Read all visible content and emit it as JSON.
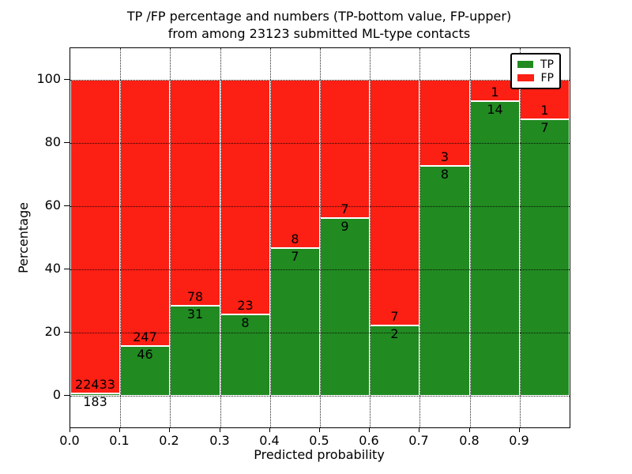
{
  "title": {
    "line1": "TP /FP percentage and numbers (TP-bottom value, FP-upper)",
    "line2": "from among 23123 submitted ML-type contacts"
  },
  "axes": {
    "xlabel": "Predicted probability",
    "ylabel": "Percentage"
  },
  "chart_data": {
    "type": "bar",
    "stacked": true,
    "title": "TP /FP percentage and numbers (TP-bottom value, FP-upper) from among 23123 submitted ML-type contacts",
    "xlabel": "Predicted probability",
    "ylabel": "Percentage",
    "total_contacts": 23123,
    "bin_edges": [
      0.0,
      0.1,
      0.2,
      0.3,
      0.4,
      0.5,
      0.6,
      0.7,
      0.8,
      0.9,
      1.0
    ],
    "series": [
      {
        "name": "TP",
        "color": "#218a21",
        "counts": [
          183,
          46,
          31,
          8,
          7,
          9,
          2,
          8,
          14,
          7
        ]
      },
      {
        "name": "FP",
        "color": "#fc1f14",
        "counts": [
          22433,
          247,
          78,
          23,
          8,
          7,
          7,
          3,
          1,
          1
        ]
      }
    ],
    "tp_percent": [
      0.81,
      15.7,
      28.44,
      25.81,
      46.67,
      56.25,
      22.22,
      72.73,
      93.33,
      87.5
    ],
    "annotation_rule": "FP count printed above TP/FP boundary, TP count printed below boundary",
    "xticks": [
      0.0,
      0.1,
      0.2,
      0.3,
      0.4,
      0.5,
      0.6,
      0.7,
      0.8,
      0.9
    ],
    "xtick_labels": [
      "0.0",
      "0.1",
      "0.2",
      "0.3",
      "0.4",
      "0.5",
      "0.6",
      "0.7",
      "0.8",
      "0.9"
    ],
    "yticks": [
      0,
      20,
      40,
      60,
      80,
      100
    ],
    "ytick_labels": [
      "0",
      "20",
      "40",
      "60",
      "80",
      "100"
    ],
    "xlim": [
      0.0,
      1.0
    ],
    "ylim": [
      -10,
      110
    ],
    "grid": "dotted",
    "bar_edge_color": "#ffffff",
    "legend": {
      "position": "upper right",
      "entries": [
        {
          "label": "TP",
          "color": "#218a21"
        },
        {
          "label": "FP",
          "color": "#fc1f14"
        }
      ]
    }
  }
}
